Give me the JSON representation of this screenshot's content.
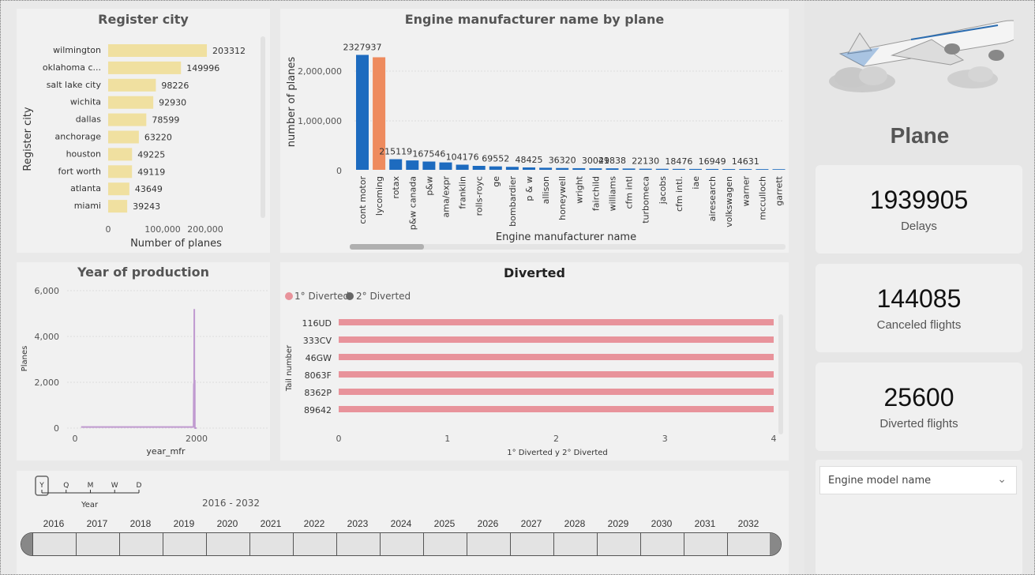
{
  "register_city": {
    "title": "Register city",
    "ylabel": "Register city",
    "xlabel": "Number of planes",
    "ticks": [
      "0",
      "100,000",
      "200,000"
    ]
  },
  "engine": {
    "title": "Engine manufacturer name by plane",
    "ylabel": "number of planes",
    "xlabel": "Engine manufacturer name",
    "ticks": [
      "0",
      "1,000,000",
      "2,000,000"
    ]
  },
  "year_prod": {
    "title": "Year of production",
    "ylabel": "Planes",
    "xlabel": "year_mfr",
    "yticks": [
      "0",
      "2,000",
      "4,000",
      "6,000"
    ],
    "xticks": [
      "0",
      "2000"
    ]
  },
  "diverted": {
    "title": "Diverted",
    "legend1": "1° Diverted",
    "legend2": "2° Diverted",
    "ylabel": "Tail number",
    "xlabel": "1° Diverted y 2° Diverted",
    "xticks": [
      "0",
      "1",
      "2",
      "3",
      "4"
    ]
  },
  "timeline": {
    "granularity": [
      "Y",
      "Q",
      "M",
      "W",
      "D"
    ],
    "granularity_label": "Year",
    "range": "2016 - 2032",
    "years": [
      "2016",
      "2017",
      "2018",
      "2019",
      "2020",
      "2021",
      "2022",
      "2023",
      "2024",
      "2025",
      "2026",
      "2027",
      "2028",
      "2029",
      "2030",
      "2031",
      "2032"
    ]
  },
  "side": {
    "title": "Plane",
    "kpis": [
      {
        "value": "1939905",
        "label": "Delays"
      },
      {
        "value": "144085",
        "label": "Canceled flights"
      },
      {
        "value": "25600",
        "label": "Diverted flights"
      }
    ],
    "dropdown_placeholder": "Engine model name"
  },
  "colors": {
    "cream": "#f0e0a0",
    "blue": "#1d6bbf",
    "orange": "#ee8b5e",
    "pink": "#e8939b",
    "purple": "#c09ad0"
  },
  "chart_data": [
    {
      "type": "bar",
      "orientation": "horizontal",
      "title": "Register city",
      "xlabel": "Number of planes",
      "ylabel": "Register city",
      "categories": [
        "wilmington",
        "oklahoma c...",
        "salt lake city",
        "wichita",
        "dallas",
        "anchorage",
        "houston",
        "fort worth",
        "atlanta",
        "miami"
      ],
      "values": [
        203312,
        149996,
        98226,
        92930,
        78599,
        63220,
        49225,
        49119,
        43649,
        39243
      ],
      "xlim": [
        0,
        250000
      ]
    },
    {
      "type": "bar",
      "title": "Engine manufacturer name by plane",
      "xlabel": "Engine manufacturer name",
      "ylabel": "number of planes",
      "categories": [
        "cont motor",
        "lycoming",
        "rotax",
        "p&w canada",
        "p&w",
        "ama/expr",
        "franklin",
        "rolls-royc",
        "ge",
        "bombardier",
        "p & w",
        "allison",
        "honeywell",
        "wright",
        "fairchild",
        "williams",
        "cfm intl",
        "turbomeca",
        "jacobs",
        "cfm intl.",
        "iae",
        "airesearch",
        "volkswagen",
        "warner",
        "mcculloch",
        "garrett"
      ],
      "values": [
        2327937,
        2280000,
        215119,
        190000,
        167546,
        150000,
        104176,
        80000,
        69552,
        60000,
        48425,
        42000,
        36320,
        33000,
        30041,
        29838,
        26000,
        22130,
        20000,
        18476,
        17500,
        16949,
        15500,
        14631,
        14000,
        13000
      ],
      "labels": [
        "2327937",
        "",
        "215119",
        "",
        "167546",
        "",
        "104176",
        "",
        "69552",
        "",
        "48425",
        "",
        "36320",
        "",
        "30041",
        "29838",
        "",
        "22130",
        "",
        "18476",
        "",
        "16949",
        "",
        "14631",
        "",
        ""
      ],
      "highlight_index": 1,
      "ylim": [
        0,
        2700000
      ]
    },
    {
      "type": "line",
      "title": "Year of production",
      "xlabel": "year_mfr",
      "ylabel": "Planes",
      "x": [
        100,
        1940,
        1950,
        1955,
        1960,
        1962,
        1963,
        1965,
        1966,
        1967,
        1968,
        1970,
        1972,
        1975,
        1980,
        1990,
        2000
      ],
      "y": [
        50,
        50,
        60,
        1900,
        2000,
        5200,
        400,
        2100,
        300,
        2000,
        500,
        2100,
        50,
        0,
        0,
        0,
        0
      ],
      "xlim": [
        -100,
        2400
      ],
      "ylim": [
        0,
        6000
      ]
    },
    {
      "type": "bar",
      "orientation": "horizontal",
      "title": "Diverted",
      "categories": [
        "116UD",
        "333CV",
        "46GW",
        "8063F",
        "8362P",
        "89642"
      ],
      "series": [
        {
          "name": "1° Diverted",
          "values": [
            4,
            4,
            4,
            4,
            4,
            4
          ]
        },
        {
          "name": "2° Diverted",
          "values": [
            0,
            0,
            0,
            0,
            0,
            0
          ]
        }
      ],
      "xlabel": "1° Diverted y 2° Diverted",
      "ylabel": "Tail number",
      "xlim": [
        0,
        4
      ]
    }
  ]
}
